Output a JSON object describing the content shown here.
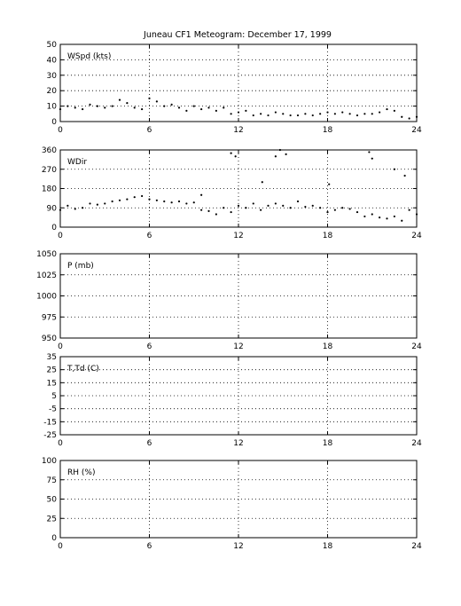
{
  "chart_data": [
    {
      "type": "scatter",
      "title": "Juneau CF1 Meteogram:  December 17, 1999",
      "label": "WSpd (kts)",
      "xlim": [
        0,
        24
      ],
      "ylim": [
        0,
        50
      ],
      "xticks": [
        "0",
        "6",
        "12",
        "18",
        "24"
      ],
      "yticks": [
        "0",
        "10",
        "20",
        "30",
        "40",
        "50"
      ],
      "grid": true,
      "series": [
        {
          "x": [
            0,
            0.5,
            1,
            1.5,
            2,
            2.5,
            3,
            3.5,
            4,
            4.5,
            5,
            5.5,
            6,
            6.5,
            7,
            7.5,
            8,
            8.5,
            9,
            9.5,
            10,
            10.5,
            11,
            11.5,
            12,
            12.5,
            13,
            13.5,
            14,
            14.5,
            15,
            15.5,
            16,
            16.5,
            17,
            17.5,
            18,
            18.5,
            19,
            19.5,
            20,
            20.5,
            21,
            21.5,
            22,
            22.5,
            23,
            23.5,
            24
          ],
          "y": [
            8,
            10,
            9,
            8,
            11,
            10,
            9,
            10,
            14,
            12,
            9,
            8,
            15,
            13,
            10,
            11,
            9,
            7,
            10,
            8,
            9,
            7,
            9,
            5,
            6,
            7,
            4,
            5,
            4,
            6,
            5,
            4,
            4,
            5,
            4,
            5,
            6,
            5,
            6,
            5,
            4,
            5,
            5,
            6,
            8,
            7,
            3,
            2,
            3
          ]
        }
      ]
    },
    {
      "type": "scatter",
      "label": "WDir",
      "xlim": [
        0,
        24
      ],
      "ylim": [
        0,
        360
      ],
      "xticks": [
        "0",
        "6",
        "12",
        "18",
        "24"
      ],
      "yticks": [
        "0",
        "90",
        "180",
        "270",
        "360"
      ],
      "grid": true,
      "series": [
        {
          "x": [
            0,
            0.5,
            1,
            1.5,
            2,
            2.5,
            3,
            3.5,
            4,
            4.5,
            5,
            5.5,
            6,
            6.5,
            7,
            7.5,
            8,
            8.5,
            9,
            9.5,
            10,
            10.5,
            11,
            11.5,
            12,
            12.5,
            13,
            13.5,
            14,
            14.5,
            15,
            15.5,
            16,
            16.5,
            17,
            17.5,
            18,
            18.5,
            19,
            19.5,
            20,
            20.5,
            21,
            21.5,
            22,
            22.5,
            23,
            23.5,
            24,
            9.5,
            11.5,
            11.8,
            13.6,
            14.5,
            14.8,
            15.2,
            18.1,
            20.8,
            21,
            22.5,
            23.2
          ],
          "y": [
            80,
            100,
            85,
            90,
            110,
            105,
            110,
            120,
            125,
            130,
            140,
            145,
            130,
            125,
            120,
            115,
            120,
            110,
            115,
            80,
            75,
            60,
            90,
            70,
            100,
            90,
            110,
            80,
            100,
            110,
            100,
            90,
            120,
            95,
            100,
            90,
            70,
            80,
            90,
            85,
            70,
            50,
            60,
            45,
            40,
            50,
            30,
            80,
            60,
            150,
            345,
            330,
            210,
            330,
            360,
            340,
            200,
            350,
            320,
            270,
            240
          ]
        }
      ]
    },
    {
      "type": "scatter",
      "label": "P (mb)",
      "xlim": [
        0,
        24
      ],
      "ylim": [
        950,
        1050
      ],
      "xticks": [
        "0",
        "6",
        "12",
        "18",
        "24"
      ],
      "yticks": [
        "950",
        "975",
        "1000",
        "1025",
        "1050"
      ],
      "grid": true,
      "series": []
    },
    {
      "type": "scatter",
      "label": "T,Td (C)",
      "xlim": [
        0,
        24
      ],
      "ylim": [
        -25,
        35
      ],
      "xticks": [
        "0",
        "6",
        "12",
        "18",
        "24"
      ],
      "yticks": [
        "-25",
        "-15",
        "-5",
        "5",
        "15",
        "25",
        "35"
      ],
      "grid": true,
      "series": []
    },
    {
      "type": "scatter",
      "label": "RH (%)",
      "xlim": [
        0,
        24
      ],
      "ylim": [
        0,
        100
      ],
      "xticks": [
        "0",
        "6",
        "12",
        "18",
        "24"
      ],
      "yticks": [
        "0",
        "25",
        "50",
        "75",
        "100"
      ],
      "grid": true,
      "series": []
    }
  ]
}
